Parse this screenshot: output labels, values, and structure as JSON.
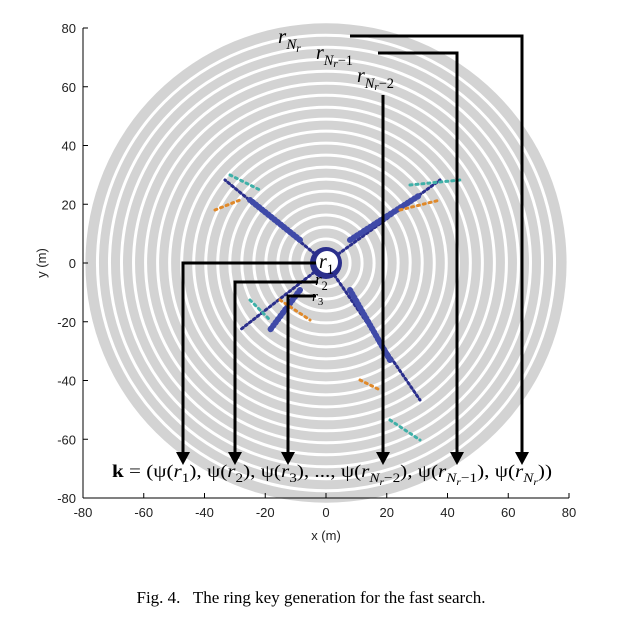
{
  "chart_data": {
    "type": "ringkey",
    "xlim": [
      -80,
      80
    ],
    "ylim": [
      -80,
      80
    ],
    "xticks": [
      -80,
      -60,
      -40,
      -20,
      0,
      20,
      40,
      60,
      80
    ],
    "yticks": [
      -80,
      -60,
      -40,
      -20,
      0,
      20,
      40,
      60,
      80
    ],
    "xlabel": "x (m)",
    "ylabel": "y (m)",
    "ring_count": 20,
    "ring_color": "#d3d3d3",
    "annotations": [
      {
        "parts": [
          {
            "t": "r",
            "italic": true
          },
          {
            "t": "N",
            "italic": true,
            "level": 1
          },
          {
            "t": "r",
            "italic": true,
            "level": 2
          }
        ]
      },
      {
        "parts": [
          {
            "t": "r",
            "italic": true
          },
          {
            "t": "N",
            "italic": true,
            "level": 1
          },
          {
            "t": "r",
            "italic": true,
            "level": 2
          },
          {
            "t": "−1",
            "level": 1
          }
        ]
      },
      {
        "parts": [
          {
            "t": "r",
            "italic": true
          },
          {
            "t": "N",
            "italic": true,
            "level": 1
          },
          {
            "t": "r",
            "italic": true,
            "level": 2
          },
          {
            "t": "−2",
            "level": 1
          }
        ]
      },
      {
        "parts": [
          {
            "t": "r",
            "italic": true
          },
          {
            "t": "1",
            "level": 1
          }
        ]
      },
      {
        "parts": [
          {
            "t": "r",
            "italic": true
          },
          {
            "t": "2",
            "level": 1
          }
        ]
      },
      {
        "parts": [
          {
            "t": "r",
            "italic": true
          },
          {
            "t": "3",
            "level": 1
          }
        ]
      }
    ],
    "formula": [
      {
        "t": "k",
        "bold": true
      },
      {
        "t": " = (ψ("
      },
      {
        "t": "r",
        "italic": true
      },
      {
        "t": "1",
        "level": 1
      },
      {
        "t": "), ψ("
      },
      {
        "t": "r",
        "italic": true
      },
      {
        "t": "2",
        "level": 1
      },
      {
        "t": "), ψ("
      },
      {
        "t": "r",
        "italic": true
      },
      {
        "t": "3",
        "level": 1
      },
      {
        "t": "), ..., ψ("
      },
      {
        "t": "r",
        "italic": true
      },
      {
        "t": "N",
        "italic": true,
        "level": 1
      },
      {
        "t": "r",
        "italic": true,
        "level": 2
      },
      {
        "t": "−2",
        "level": 1
      },
      {
        "t": "), ψ("
      },
      {
        "t": "r",
        "italic": true
      },
      {
        "t": "N",
        "italic": true,
        "level": 1
      },
      {
        "t": "r",
        "italic": true,
        "level": 2
      },
      {
        "t": "−1",
        "level": 1
      },
      {
        "t": "), ψ("
      },
      {
        "t": "r",
        "italic": true
      },
      {
        "t": "N",
        "italic": true,
        "level": 1
      },
      {
        "t": "r",
        "italic": true,
        "level": 2
      },
      {
        "t": "))"
      }
    ]
  },
  "caption": "Fig. 4.   The ring key generation for the fast search."
}
